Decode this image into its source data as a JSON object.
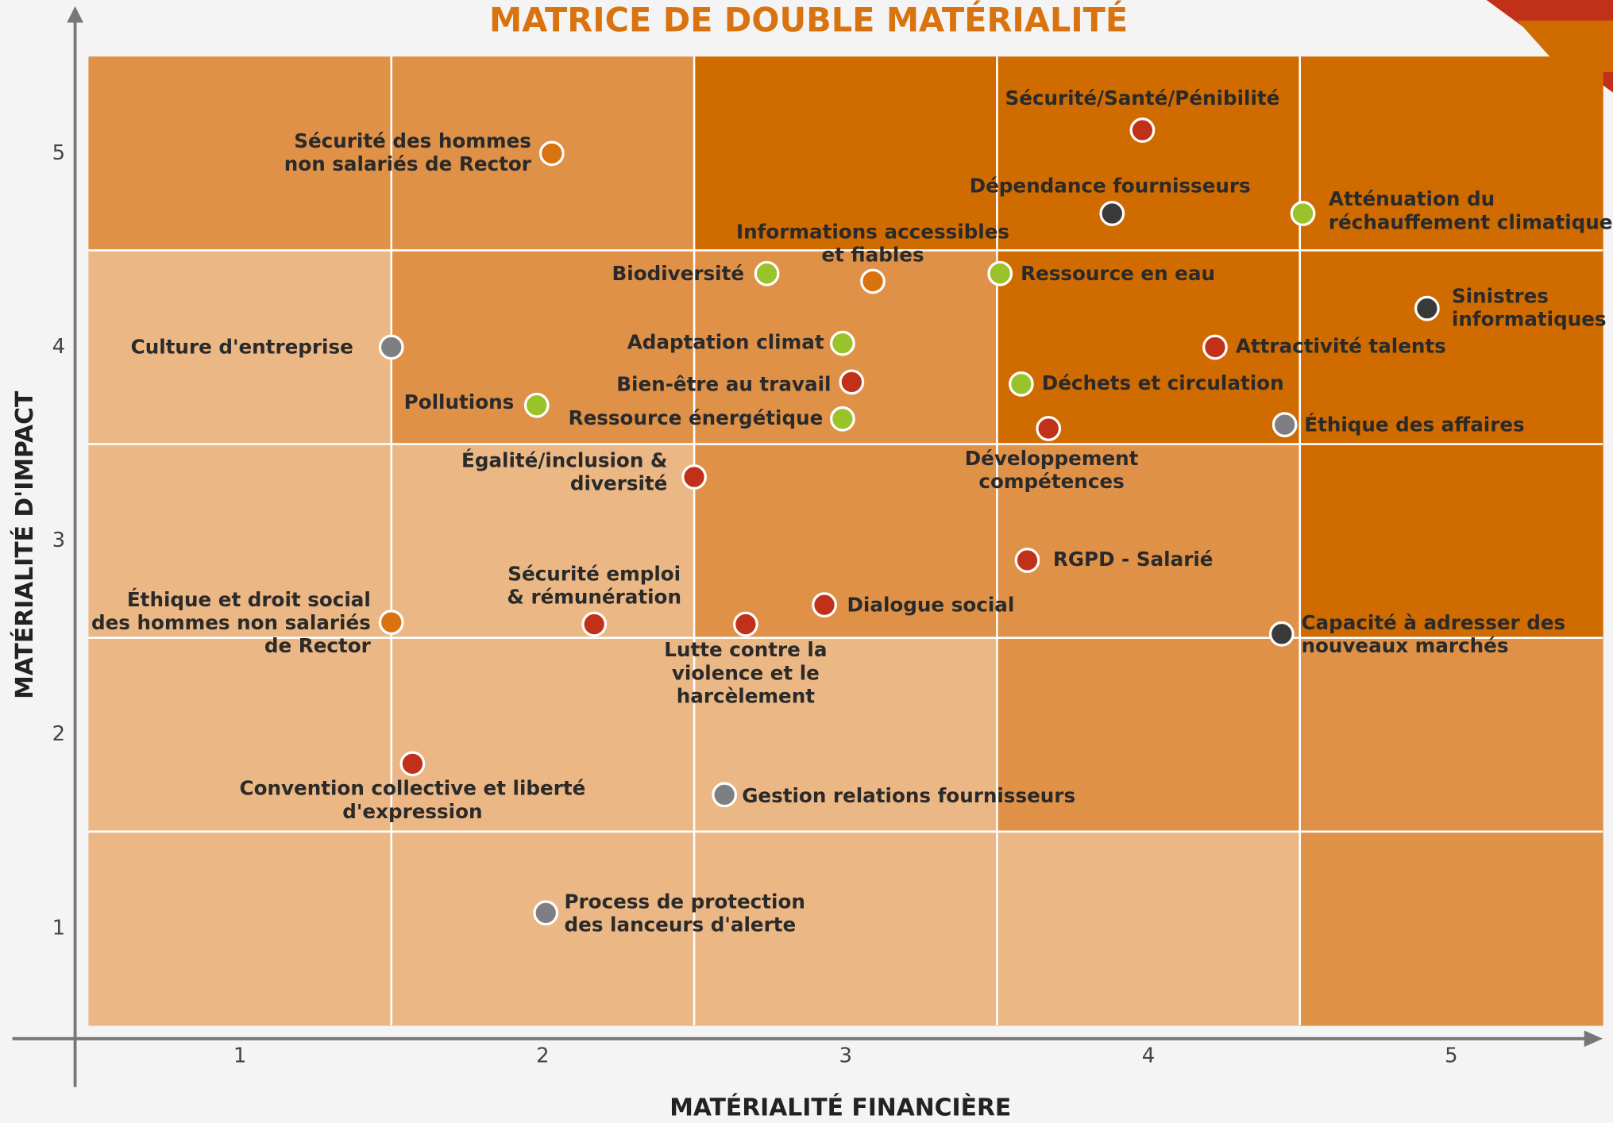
{
  "chart_data": {
    "type": "scatter",
    "title": "MATRICE DE DOUBLE MATÉRIALITÉ",
    "x_label": "MATÉRIALITÉ FINANCIÈRE",
    "y_label": "MATÉRIALITÉ D'IMPACT",
    "xlim": [
      0.5,
      5.5
    ],
    "ylim": [
      0.5,
      5.5
    ],
    "xticks": [
      1,
      2,
      3,
      4,
      5
    ],
    "yticks": [
      1,
      2,
      3,
      4,
      5
    ],
    "grid": true,
    "points": [
      {
        "label": [
          "Sécurité des hommes",
          "non salariés de Rector"
        ],
        "x": 2.03,
        "y": 5.0,
        "color": "#d9730f"
      },
      {
        "label": [
          "Sécurité/Santé/Pénibilité"
        ],
        "x": 3.98,
        "y": 5.12,
        "color": "#c1311a"
      },
      {
        "label": [
          "Dépendance fournisseurs"
        ],
        "x": 3.88,
        "y": 4.69,
        "color": "#3a3a3a"
      },
      {
        "label": [
          "Atténuation du",
          "réchauffement climatique"
        ],
        "x": 4.51,
        "y": 4.69,
        "color": "#9ac32b"
      },
      {
        "label": [
          "Informations accessibles",
          "et fiables"
        ],
        "x": 3.09,
        "y": 4.34,
        "color": "#d9730f"
      },
      {
        "label": [
          "Biodiversité"
        ],
        "x": 2.74,
        "y": 4.38,
        "color": "#9ac32b"
      },
      {
        "label": [
          "Ressource en eau"
        ],
        "x": 3.51,
        "y": 4.38,
        "color": "#9ac32b"
      },
      {
        "label": [
          "Sinistres",
          "informatiques"
        ],
        "x": 4.92,
        "y": 4.2,
        "color": "#3a3a3a"
      },
      {
        "label": [
          "Culture d'entreprise"
        ],
        "x": 1.5,
        "y": 4.0,
        "color": "#7d7f83"
      },
      {
        "label": [
          "Adaptation climat"
        ],
        "x": 2.99,
        "y": 4.02,
        "color": "#9ac32b"
      },
      {
        "label": [
          "Attractivité talents"
        ],
        "x": 4.22,
        "y": 4.0,
        "color": "#c1311a"
      },
      {
        "label": [
          "Bien-être au travail"
        ],
        "x": 3.02,
        "y": 3.82,
        "color": "#c1311a"
      },
      {
        "label": [
          "Déchets et circulation"
        ],
        "x": 3.58,
        "y": 3.81,
        "color": "#9ac32b"
      },
      {
        "label": [
          "Pollutions"
        ],
        "x": 1.98,
        "y": 3.7,
        "color": "#9ac32b"
      },
      {
        "label": [
          "Ressource énergétique"
        ],
        "x": 2.99,
        "y": 3.63,
        "color": "#9ac32b"
      },
      {
        "label": [
          "Développement",
          "compétences"
        ],
        "x": 3.67,
        "y": 3.58,
        "color": "#c1311a"
      },
      {
        "label": [
          "Éthique des affaires"
        ],
        "x": 4.45,
        "y": 3.6,
        "color": "#7d7f83"
      },
      {
        "label": [
          "Égalité/inclusion &",
          "diversité"
        ],
        "x": 2.5,
        "y": 3.33,
        "color": "#c1311a"
      },
      {
        "label": [
          "RGPD - Salarié"
        ],
        "x": 3.6,
        "y": 2.9,
        "color": "#c1311a"
      },
      {
        "label": [
          "Dialogue social"
        ],
        "x": 2.93,
        "y": 2.67,
        "color": "#c1311a"
      },
      {
        "label": [
          "Éthique et droit social",
          "des hommes non salariés",
          "de Rector"
        ],
        "x": 1.5,
        "y": 2.58,
        "color": "#d9730f"
      },
      {
        "label": [
          "Sécurité emploi",
          "& rémunération"
        ],
        "x": 2.17,
        "y": 2.57,
        "color": "#c1311a"
      },
      {
        "label": [
          "Lutte contre la",
          "violence et le",
          "harcèlement"
        ],
        "x": 2.67,
        "y": 2.57,
        "color": "#c1311a"
      },
      {
        "label": [
          "Capacité à adresser des",
          "nouveaux marchés"
        ],
        "x": 4.44,
        "y": 2.52,
        "color": "#3a3a3a"
      },
      {
        "label": [
          "Convention collective et liberté",
          "d'expression"
        ],
        "x": 1.57,
        "y": 1.85,
        "color": "#c1311a"
      },
      {
        "label": [
          "Gestion relations fournisseurs"
        ],
        "x": 2.6,
        "y": 1.69,
        "color": "#7d7f83"
      },
      {
        "label": [
          "Process de protection",
          "des lanceurs d'alerte"
        ],
        "x": 2.01,
        "y": 1.08,
        "color": "#7d7f83"
      }
    ]
  }
}
